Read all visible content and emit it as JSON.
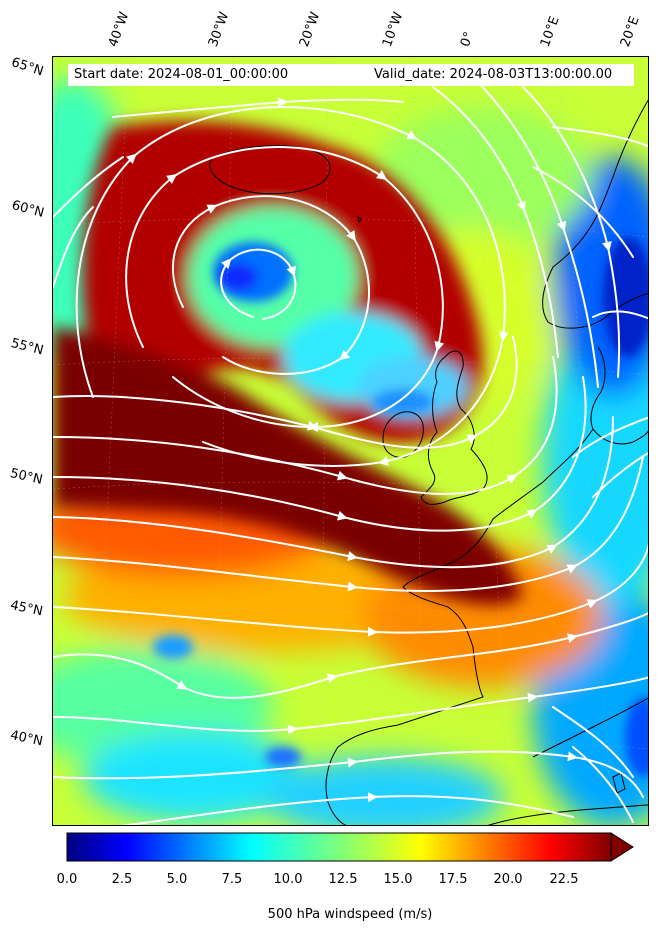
{
  "header": {
    "start_date": "Start date: 2024-08-01_00:00:00",
    "valid_date": "Valid_date: 2024-08-03T13:00:00.00"
  },
  "lon_labels": [
    "40°W",
    "30°W",
    "20°W",
    "10°W",
    "0°",
    "10°E",
    "20°E"
  ],
  "lat_labels": [
    "65°N",
    "60°N",
    "55°N",
    "50°N",
    "45°N",
    "40°N"
  ],
  "colorbar": {
    "label": "500 hPa windspeed (m/s)",
    "ticks": [
      "0.0",
      "2.5",
      "5.0",
      "7.5",
      "10.0",
      "12.5",
      "15.0",
      "17.5",
      "20.0",
      "22.5"
    ],
    "min": 0,
    "max": 25,
    "extend": "max",
    "colormap": "jet",
    "overflow_color": "#800000"
  },
  "map": {
    "field": "500 hPa windspeed",
    "units": "m/s",
    "streamlines_color": "#ffffff",
    "coastline_color": "#000000",
    "cyclone_center": {
      "lon": -25,
      "lat": 57.5
    },
    "jet_max_band": "west of Ireland and Bay of Biscay, 46–53°N"
  }
}
